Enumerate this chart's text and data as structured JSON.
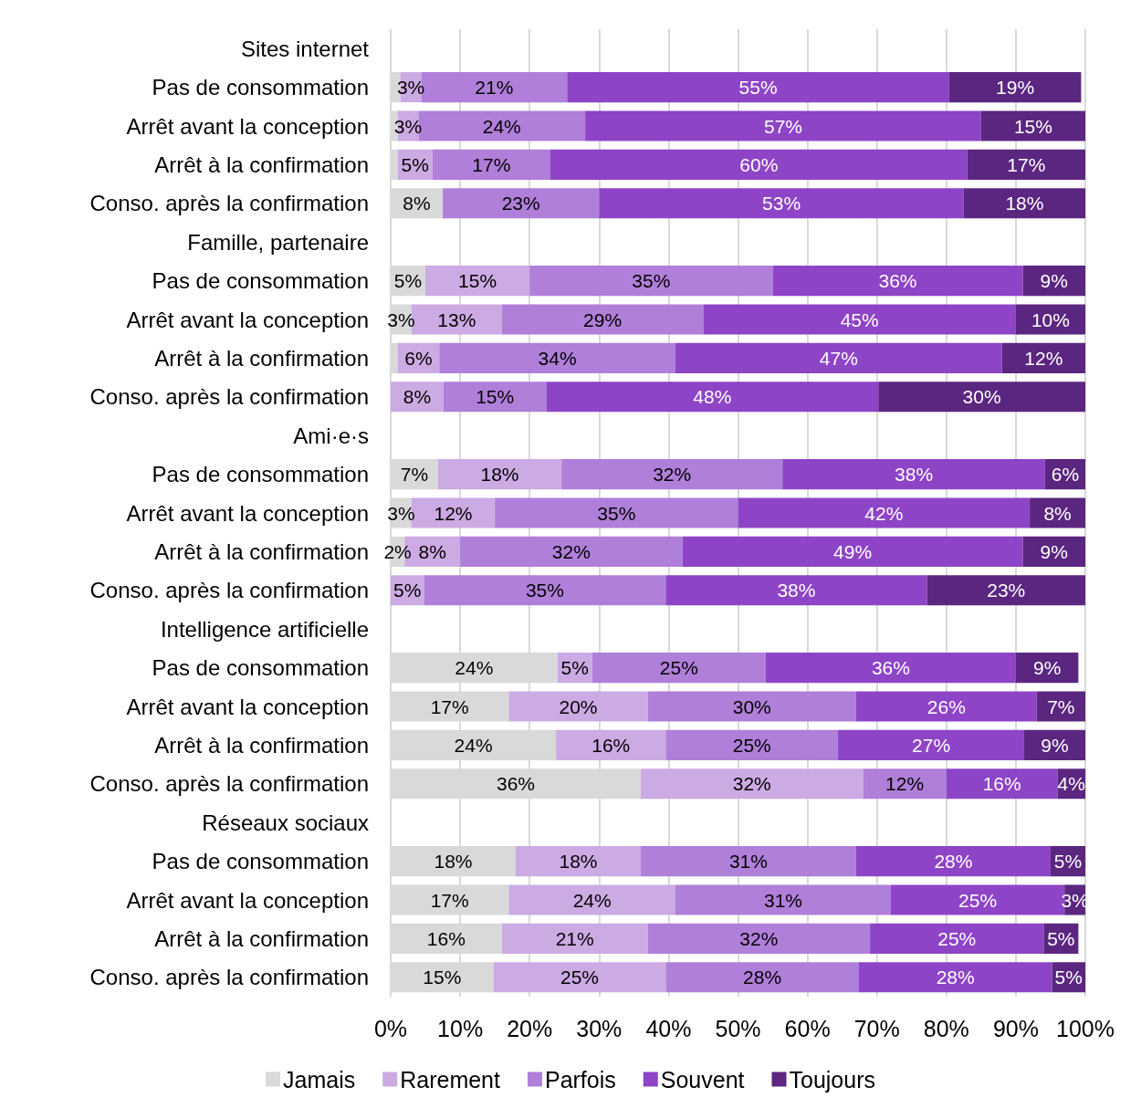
{
  "chart_data": {
    "type": "bar",
    "orientation": "horizontal",
    "stacked": true,
    "categories": [
      "Sites internet",
      "Pas de consommation",
      "Arrêt avant la conception",
      "Arrêt à la confirmation",
      "Conso. après la confirmation",
      "Famille, partenaire",
      "Pas de consommation",
      "Arrêt avant la conception",
      "Arrêt à la confirmation",
      "Conso. après la confirmation",
      "Ami·e·s",
      "Pas de consommation",
      "Arrêt avant la conception",
      "Arrêt à la confirmation",
      "Conso. après la confirmation",
      "Intelligence artificielle",
      "Pas de consommation",
      "Arrêt avant la conception",
      "Arrêt à la confirmation",
      "Conso. après la confirmation",
      "Réseaux sociaux",
      "Pas de consommation",
      "Arrêt avant la conception",
      "Arrêt à la confirmation",
      "Conso. après la confirmation"
    ],
    "series": [
      {
        "name": "Jamais",
        "color": "#d9d9d9",
        "values": [
          null,
          1.4,
          1,
          1,
          7.5,
          null,
          5,
          3,
          1,
          null,
          null,
          6.8,
          3,
          2,
          null,
          null,
          24,
          17,
          23.8,
          36,
          null,
          18,
          17,
          16,
          14.8
        ],
        "value_labels": [
          null,
          null,
          null,
          null,
          "8%",
          null,
          "5%",
          "3%",
          null,
          null,
          null,
          "7%",
          "3%",
          "2%",
          null,
          null,
          "24%",
          "17%",
          "24%",
          "36%",
          null,
          "18%",
          "17%",
          "16%",
          "15%"
        ]
      },
      {
        "name": "Rarement",
        "color": "#ccaae3",
        "values": [
          null,
          3,
          3,
          5,
          null,
          null,
          15,
          13,
          6,
          7.6,
          null,
          17.8,
          12,
          8,
          4.8,
          null,
          5,
          20,
          15.8,
          32,
          null,
          18,
          24,
          21,
          24.8
        ],
        "value_labels": [
          null,
          "3%",
          "3%",
          "5%",
          null,
          null,
          "15%",
          "13%",
          "6%",
          "8%",
          null,
          "18%",
          "12%",
          "8%",
          "5%",
          null,
          "5%",
          "20%",
          "16%",
          "32%",
          null,
          "18%",
          "24%",
          "21%",
          "25%"
        ]
      },
      {
        "name": "Parfois",
        "color": "#b07fd9",
        "values": [
          null,
          21,
          24,
          17,
          22.5,
          null,
          35,
          29,
          34,
          14.8,
          null,
          31.8,
          35,
          32,
          34.8,
          null,
          25,
          30,
          24.8,
          12,
          null,
          31,
          31,
          32,
          27.8
        ],
        "value_labels": [
          null,
          "21%",
          "24%",
          "17%",
          "23%",
          null,
          "35%",
          "29%",
          "34%",
          "15%",
          null,
          "32%",
          "35%",
          "32%",
          "35%",
          null,
          "25%",
          "30%",
          "25%",
          "12%",
          null,
          "31%",
          "31%",
          "32%",
          "28%"
        ]
      },
      {
        "name": "Souvent",
        "color": "#8e44c7",
        "values": [
          null,
          55,
          57,
          60,
          52.5,
          null,
          36,
          45,
          47,
          47.8,
          null,
          37.8,
          42,
          49,
          37.6,
          null,
          36,
          26,
          26.8,
          16,
          null,
          28,
          25,
          25,
          27.8
        ],
        "value_labels": [
          null,
          "55%",
          "57%",
          "60%",
          "53%",
          null,
          "36%",
          "45%",
          "47%",
          "48%",
          null,
          "38%",
          "42%",
          "49%",
          "38%",
          null,
          "36%",
          "26%",
          "27%",
          "16%",
          null,
          "28%",
          "25%",
          "25%",
          "28%"
        ]
      },
      {
        "name": "Toujours",
        "color": "#5b2680",
        "values": [
          null,
          19,
          15,
          17,
          17.5,
          null,
          9,
          10,
          12,
          29.8,
          null,
          5.8,
          8,
          9,
          22.8,
          null,
          9,
          7,
          8.8,
          4,
          null,
          5,
          3,
          5,
          4.8
        ],
        "value_labels": [
          null,
          "19%",
          "15%",
          "17%",
          "18%",
          null,
          "9%",
          "10%",
          "12%",
          "30%",
          null,
          "6%",
          "8%",
          "9%",
          "23%",
          null,
          "9%",
          "7%",
          "9%",
          "4%",
          null,
          "5%",
          "3%",
          "5%",
          "5%"
        ]
      }
    ],
    "xlim": [
      0,
      100
    ],
    "xticks": [
      {
        "value": 0,
        "label": "0%"
      },
      {
        "value": 10,
        "label": "10%"
      },
      {
        "value": 20,
        "label": "20%"
      },
      {
        "value": 30,
        "label": "30%"
      },
      {
        "value": 40,
        "label": "40%"
      },
      {
        "value": 50,
        "label": "50%"
      },
      {
        "value": 60,
        "label": "60%"
      },
      {
        "value": 70,
        "label": "70%"
      },
      {
        "value": 80,
        "label": "80%"
      },
      {
        "value": 90,
        "label": "90%"
      },
      {
        "value": 100,
        "label": "100%"
      }
    ],
    "grid": "x",
    "legend": "bottom"
  }
}
